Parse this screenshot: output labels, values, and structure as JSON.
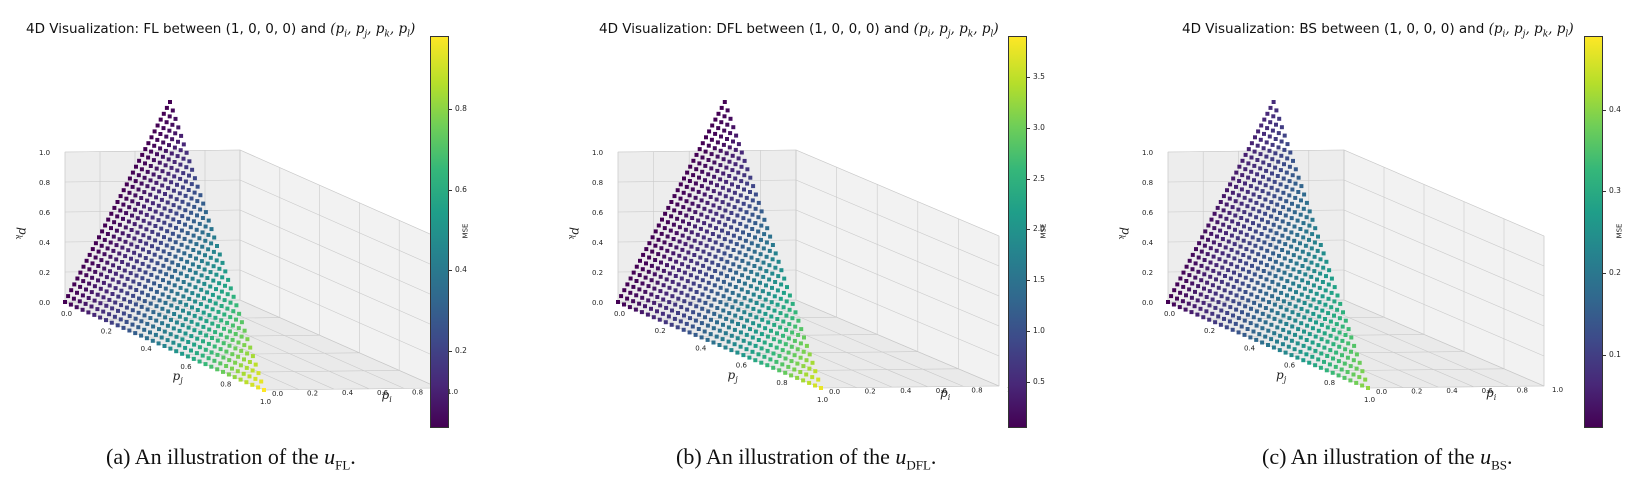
{
  "panels": [
    {
      "id": "fl",
      "title_prefix": "4D Visualization: FL between ",
      "title_point": "(1, 0, 0, 0)",
      "title_and": " and ",
      "title_vars": "(p_i, p_j, p_k, p_l)",
      "caption_prefix": "(a) An illustration of the ",
      "caption_symbol": "u",
      "caption_sub": "FL",
      "caption_suffix": "."
    },
    {
      "id": "dfl",
      "title_prefix": "4D Visualization: DFL between ",
      "title_point": "(1, 0, 0, 0)",
      "title_and": " and ",
      "title_vars": "(p_i, p_j, p_k, p_l)",
      "caption_prefix": "(b) An illustration of the ",
      "caption_symbol": "u",
      "caption_sub": "DFL",
      "caption_suffix": "."
    },
    {
      "id": "bs",
      "title_prefix": "4D Visualization: BS between ",
      "title_point": "(1, 0, 0, 0)",
      "title_and": " and ",
      "title_vars": "(p_i, p_j, p_k, p_l)",
      "caption_prefix": "(c) An illustration of the ",
      "caption_symbol": "u",
      "caption_sub": "BS",
      "caption_suffix": "."
    }
  ],
  "chart_data": [
    {
      "type": "scatter",
      "title": "4D Visualization: FL between (1, 0, 0, 0) and (p_i, p_j, p_k, p_l)",
      "xlabel": "p_i",
      "ylabel": "p_j",
      "zlabel": "p_k",
      "xlim": [
        0,
        1
      ],
      "ylim": [
        0,
        1
      ],
      "zlim": [
        0,
        1
      ],
      "ticks": [
        "0.0",
        "0.2",
        "0.4",
        "0.6",
        "0.8",
        "1.0"
      ],
      "colorbar": {
        "label": "MSE",
        "colormap": "viridis",
        "range": [
          0.01,
          0.98
        ],
        "ticks": [
          0.2,
          0.4,
          0.6,
          0.8
        ],
        "tick_labels": [
          "0.2",
          "0.4",
          "0.6",
          "0.8"
        ]
      },
      "color_by": "fl",
      "grid": true
    },
    {
      "type": "scatter",
      "title": "4D Visualization: DFL between (1, 0, 0, 0) and (p_i, p_j, p_k, p_l)",
      "xlabel": "p_i",
      "ylabel": "p_j",
      "zlabel": "p_k",
      "xlim": [
        0,
        1
      ],
      "ylim": [
        0,
        1
      ],
      "zlim": [
        0,
        1
      ],
      "ticks": [
        "0.0",
        "0.2",
        "0.4",
        "0.6",
        "0.8",
        "1.0"
      ],
      "colorbar": {
        "label": "MSE",
        "colormap": "viridis",
        "range": [
          0.05,
          3.9
        ],
        "ticks": [
          0.5,
          1.0,
          1.5,
          2.0,
          2.5,
          3.0,
          3.5
        ],
        "tick_labels": [
          "0.5",
          "1.0",
          "1.5",
          "2.0",
          "2.5",
          "3.0",
          "3.5"
        ]
      },
      "color_by": "dfl",
      "grid": true
    },
    {
      "type": "scatter",
      "title": "4D Visualization: BS between (1, 0, 0, 0) and (p_i, p_j, p_k, p_l)",
      "xlabel": "p_i",
      "ylabel": "p_j",
      "zlabel": "p_k",
      "xlim": [
        0,
        1
      ],
      "ylim": [
        0,
        1
      ],
      "zlim": [
        0,
        1
      ],
      "ticks": [
        "0.0",
        "0.2",
        "0.4",
        "0.6",
        "0.8",
        "1.0"
      ],
      "colorbar": {
        "label": "MSE",
        "colormap": "viridis",
        "range": [
          0.01,
          0.49
        ],
        "ticks": [
          0.1,
          0.2,
          0.3,
          0.4
        ],
        "tick_labels": [
          "0.1",
          "0.2",
          "0.3",
          "0.4"
        ]
      },
      "color_by": "bs",
      "grid": true
    }
  ],
  "colors": {
    "viridis": [
      "#440154",
      "#482878",
      "#3e4989",
      "#31688e",
      "#26828e",
      "#1f9e89",
      "#35b779",
      "#6ece58",
      "#b5de2b",
      "#fde725"
    ]
  }
}
